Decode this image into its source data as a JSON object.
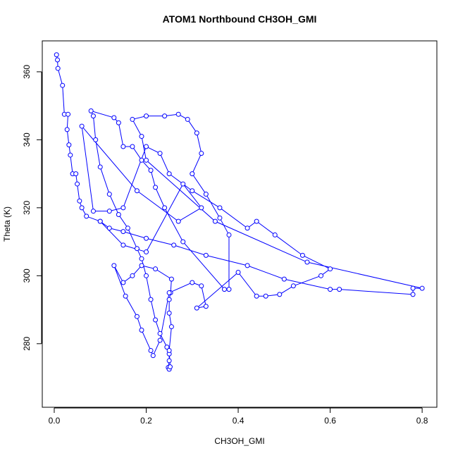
{
  "chart_data": {
    "type": "line",
    "markers": true,
    "title": "ATOM1 Northbound CH3OH_GMI",
    "x_label": "CH3OH_GMI",
    "y_label": "Theta (K)",
    "color": "#0000ff",
    "xlim": [
      -0.026,
      0.832
    ],
    "ylim": [
      261.3,
      369.1
    ],
    "xticks": [
      {
        "value": 0,
        "label": "0.0"
      },
      0.2,
      0.4,
      0.6,
      0.8
    ],
    "yticks": [
      280,
      300,
      320,
      340,
      360
    ],
    "x": [
      0.005,
      0.007,
      0.008,
      0.018,
      0.022,
      0.03,
      0.028,
      0.032,
      0.035,
      0.04,
      0.047,
      0.05,
      0.055,
      0.06,
      0.07,
      0.1,
      0.12,
      0.15,
      0.2,
      0.26,
      0.33,
      0.42,
      0.5,
      0.6,
      0.62,
      0.78,
      0.78,
      0.8,
      0.55,
      0.35,
      0.2,
      0.19,
      0.17,
      0.2,
      0.24,
      0.27,
      0.29,
      0.31,
      0.32,
      0.3,
      0.33,
      0.36,
      0.38,
      0.38,
      0.37,
      0.28,
      0.24,
      0.22,
      0.21,
      0.19,
      0.17,
      0.15,
      0.14,
      0.13,
      0.08,
      0.085,
      0.09,
      0.1,
      0.12,
      0.14,
      0.16,
      0.18,
      0.19,
      0.2,
      0.21,
      0.22,
      0.23,
      0.245,
      0.25,
      0.25,
      0.248,
      0.25,
      0.252,
      0.25,
      0.255,
      0.25,
      0.25,
      0.253,
      0.255,
      0.22,
      0.19,
      0.17,
      0.15,
      0.13,
      0.155,
      0.18,
      0.19,
      0.21,
      0.215,
      0.23,
      0.25,
      0.3,
      0.32,
      0.33,
      0.31,
      0.4,
      0.44,
      0.46,
      0.49,
      0.52,
      0.58,
      0.6,
      0.54,
      0.48,
      0.44,
      0.42,
      0.36,
      0.3,
      0.25,
      0.23,
      0.2,
      0.15,
      0.12,
      0.085,
      0.06,
      0.18,
      0.27,
      0.32,
      0.28,
      0.2,
      0.15,
      0.1
    ],
    "values": [
      365,
      363.5,
      361,
      356,
      347.5,
      347.5,
      343,
      338.5,
      335.5,
      330,
      330,
      327,
      322,
      320,
      317.5,
      316,
      314,
      313,
      311,
      309,
      306,
      303,
      299,
      296,
      296,
      294.5,
      296.3,
      296.3,
      304,
      316,
      334,
      341,
      346,
      347,
      347,
      347.5,
      346,
      342,
      336,
      330,
      324,
      317,
      312,
      296,
      296,
      310,
      320,
      326,
      331,
      334,
      338,
      338,
      345,
      346.5,
      348.5,
      347,
      340,
      332,
      324,
      318,
      314,
      308,
      305,
      300,
      293,
      287,
      283,
      279,
      277,
      275,
      273,
      272.5,
      273.2,
      278,
      285,
      289,
      293,
      295,
      299,
      302,
      303,
      300,
      298,
      303,
      294,
      288,
      284,
      278,
      276.5,
      281,
      295,
      298,
      297,
      291,
      290.5,
      301,
      294,
      294,
      294.5,
      297,
      300,
      302,
      306,
      312,
      316,
      314,
      320,
      325,
      330,
      336,
      338,
      320,
      319,
      319,
      344,
      325,
      316,
      320,
      327,
      307,
      309,
      316
    ]
  }
}
